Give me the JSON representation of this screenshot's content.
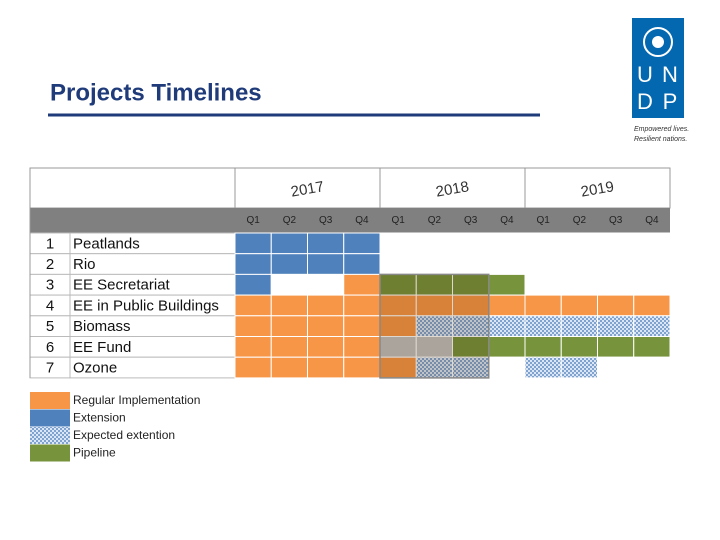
{
  "header": {
    "title": "Projects Timelines",
    "logo": {
      "letters": [
        "U",
        "N",
        "D",
        "P"
      ],
      "tagline": [
        "Empowered lives.",
        "Resilient nations."
      ]
    }
  },
  "table": {
    "years": [
      "2017",
      "2018",
      "2019"
    ],
    "quarters": [
      "Q1",
      "Q2",
      "Q3",
      "Q4"
    ],
    "rows": [
      {
        "number": "1",
        "name": "Peatlands",
        "cells": [
          "#4f81bd",
          "#4f81bd",
          "#4f81bd",
          "#4f81bd",
          "#ffffff",
          "#ffffff",
          "#ffffff",
          "#ffffff",
          "#ffffff",
          "#ffffff",
          "#ffffff",
          "#ffffff"
        ]
      },
      {
        "number": "2",
        "name": "Rio",
        "cells": [
          "#4f81bd",
          "#4f81bd",
          "#4f81bd",
          "#4f81bd",
          "#ffffff",
          "#ffffff",
          "#ffffff",
          "#ffffff",
          "#ffffff",
          "#ffffff",
          "#ffffff",
          "#ffffff"
        ]
      },
      {
        "number": "3",
        "name": "EE Secretariat",
        "cells": [
          "#4f81bd",
          "#ffffff",
          "#ffffff",
          "#f79646",
          "#77933c",
          "#77933c",
          "#77933c",
          "#77933c",
          "#ffffff",
          "#ffffff",
          "#ffffff",
          "#ffffff"
        ]
      },
      {
        "number": "4",
        "name": "EE in Public Buildings",
        "cells": [
          "#f79646",
          "#f79646",
          "#f79646",
          "#f79646",
          "#f79646",
          "#f79646",
          "#f79646",
          "#f79646",
          "#f79646",
          "#f79646",
          "#f79646",
          "#f79646"
        ]
      },
      {
        "number": "5",
        "name": "Biomass",
        "cells": [
          "#f79646",
          "#f79646",
          "#f79646",
          "#f79646",
          "#f79646",
          "#a9c4e4",
          "#a9c4e4",
          "#a9c4e4",
          "#a9c4e4",
          "#a9c4e4",
          "#a9c4e4",
          "#a9c4e4"
        ]
      },
      {
        "number": "6",
        "name": "EE Fund",
        "cells": [
          "#f79646",
          "#f79646",
          "#f79646",
          "#f79646",
          "#c0c0c0",
          "#c0c0c0",
          "#77933c",
          "#77933c",
          "#77933c",
          "#77933c",
          "#77933c",
          "#77933c"
        ]
      },
      {
        "number": "7",
        "name": "Ozone",
        "cells": [
          "#f79646",
          "#f79646",
          "#f79646",
          "#f79646",
          "#f79646",
          "#a9c4e4",
          "#a9c4e4",
          "#ffffff",
          "#a9c4e4",
          "#a9c4e4",
          "#ffffff",
          "#ffffff"
        ]
      }
    ]
  },
  "legend": [
    {
      "label": "Regular Implementation",
      "color": "#f79646"
    },
    {
      "label": "Extension",
      "color": "#4f81bd"
    },
    {
      "label": "Expected extention",
      "color": "#a9c4e4",
      "pattern": true
    },
    {
      "label": "Pipeline",
      "color": "#77933c"
    }
  ]
}
